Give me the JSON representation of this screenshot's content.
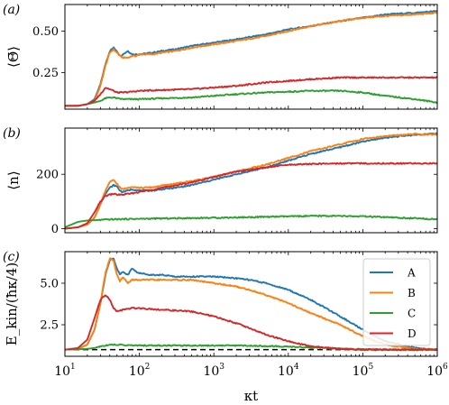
{
  "chart_data": [
    {
      "type": "line",
      "panel_label": "(a)",
      "ylabel": "⟨Θ̄⟩",
      "xscale": "log",
      "xlim": [
        10,
        1000000
      ],
      "ylim": [
        0.03,
        0.66
      ],
      "yticks": [
        0.25,
        0.5
      ],
      "ytick_labels": [
        "0.25",
        "0.50"
      ],
      "series": [
        {
          "name": "A",
          "x": [
            10,
            15,
            20,
            25,
            30,
            35,
            40,
            45,
            50,
            55,
            60,
            70,
            80,
            90,
            100,
            150,
            200,
            300,
            500,
            700,
            1000,
            2000,
            5000,
            10000,
            20000,
            50000,
            100000,
            200000,
            500000,
            1000000
          ],
          "y": [
            0.05,
            0.05,
            0.06,
            0.09,
            0.18,
            0.3,
            0.38,
            0.4,
            0.38,
            0.35,
            0.36,
            0.38,
            0.36,
            0.36,
            0.36,
            0.37,
            0.38,
            0.39,
            0.41,
            0.42,
            0.43,
            0.45,
            0.48,
            0.51,
            0.53,
            0.56,
            0.58,
            0.6,
            0.61,
            0.62
          ]
        },
        {
          "name": "B",
          "x": [
            10,
            15,
            20,
            25,
            30,
            35,
            40,
            45,
            50,
            55,
            60,
            70,
            80,
            90,
            100,
            150,
            200,
            300,
            500,
            700,
            1000,
            2000,
            5000,
            10000,
            20000,
            50000,
            100000,
            200000,
            500000,
            1000000
          ],
          "y": [
            0.05,
            0.05,
            0.06,
            0.08,
            0.17,
            0.29,
            0.37,
            0.39,
            0.37,
            0.35,
            0.34,
            0.34,
            0.35,
            0.35,
            0.36,
            0.36,
            0.37,
            0.38,
            0.4,
            0.41,
            0.42,
            0.44,
            0.47,
            0.5,
            0.53,
            0.56,
            0.58,
            0.59,
            0.6,
            0.61
          ]
        },
        {
          "name": "C",
          "x": [
            10,
            15,
            20,
            25,
            30,
            35,
            40,
            45,
            50,
            60,
            80,
            100,
            200,
            500,
            1000,
            2000,
            5000,
            10000,
            20000,
            30000,
            50000,
            100000,
            200000,
            500000,
            1000000
          ],
          "y": [
            0.05,
            0.05,
            0.06,
            0.07,
            0.08,
            0.095,
            0.1,
            0.1,
            0.095,
            0.09,
            0.09,
            0.09,
            0.095,
            0.1,
            0.11,
            0.12,
            0.13,
            0.135,
            0.14,
            0.14,
            0.14,
            0.13,
            0.11,
            0.09,
            0.07
          ]
        },
        {
          "name": "D",
          "x": [
            10,
            15,
            20,
            25,
            30,
            35,
            40,
            45,
            50,
            60,
            80,
            100,
            200,
            500,
            1000,
            2000,
            5000,
            10000,
            20000,
            50000,
            100000,
            200000,
            500000,
            1000000
          ],
          "y": [
            0.05,
            0.05,
            0.06,
            0.08,
            0.12,
            0.16,
            0.15,
            0.14,
            0.13,
            0.13,
            0.135,
            0.14,
            0.145,
            0.15,
            0.16,
            0.17,
            0.19,
            0.2,
            0.21,
            0.22,
            0.22,
            0.22,
            0.22,
            0.22
          ]
        }
      ]
    },
    {
      "type": "line",
      "panel_label": "(b)",
      "ylabel": "⟨n⟩",
      "xscale": "log",
      "xlim": [
        10,
        1000000
      ],
      "ylim": [
        -15,
        370
      ],
      "yticks": [
        0,
        200
      ],
      "ytick_labels": [
        "0",
        "200"
      ],
      "series": [
        {
          "name": "A",
          "x": [
            10,
            15,
            20,
            25,
            30,
            35,
            40,
            45,
            50,
            55,
            60,
            70,
            80,
            100,
            150,
            200,
            300,
            500,
            1000,
            2000,
            5000,
            10000,
            20000,
            50000,
            100000,
            200000,
            500000,
            1000000
          ],
          "y": [
            0,
            5,
            15,
            40,
            90,
            130,
            150,
            160,
            155,
            140,
            135,
            140,
            145,
            140,
            140,
            145,
            150,
            160,
            180,
            200,
            225,
            250,
            275,
            300,
            320,
            335,
            345,
            350
          ]
        },
        {
          "name": "B",
          "x": [
            10,
            15,
            20,
            25,
            30,
            35,
            40,
            45,
            50,
            55,
            60,
            70,
            80,
            100,
            150,
            200,
            300,
            500,
            1000,
            2000,
            5000,
            10000,
            20000,
            50000,
            100000,
            200000,
            500000,
            1000000
          ],
          "y": [
            0,
            5,
            15,
            40,
            90,
            140,
            170,
            180,
            165,
            150,
            145,
            150,
            155,
            150,
            152,
            158,
            165,
            175,
            190,
            210,
            235,
            260,
            285,
            310,
            330,
            340,
            348,
            345
          ]
        },
        {
          "name": "C",
          "x": [
            10,
            15,
            20,
            30,
            40,
            60,
            100,
            300,
            1000,
            3000,
            10000,
            30000,
            100000,
            300000,
            1000000
          ],
          "y": [
            5,
            25,
            30,
            32,
            34,
            35,
            36,
            38,
            40,
            42,
            45,
            47,
            45,
            40,
            35
          ]
        },
        {
          "name": "D",
          "x": [
            10,
            15,
            20,
            25,
            30,
            35,
            40,
            45,
            50,
            60,
            80,
            100,
            200,
            500,
            1000,
            2000,
            5000,
            10000,
            20000,
            50000,
            100000,
            200000,
            500000,
            1000000
          ],
          "y": [
            0,
            5,
            20,
            60,
            100,
            120,
            125,
            128,
            125,
            125,
            130,
            135,
            150,
            170,
            190,
            210,
            225,
            235,
            238,
            240,
            240,
            240,
            240,
            240
          ]
        }
      ]
    },
    {
      "type": "line",
      "panel_label": "(c)",
      "ylabel": "E_kin/(ħκ/4)",
      "xlabel": "κt",
      "xscale": "log",
      "xlim": [
        10,
        1000000
      ],
      "ylim": [
        0.6,
        6.9
      ],
      "yticks": [
        2.5,
        5.0
      ],
      "ytick_labels": [
        "2.5",
        "5.0"
      ],
      "xticks": [
        10,
        100,
        1000,
        10000,
        100000,
        1000000
      ],
      "xtick_labels": [
        {
          "base": "10",
          "exp": "1"
        },
        {
          "base": "10",
          "exp": "2"
        },
        {
          "base": "10",
          "exp": "3"
        },
        {
          "base": "10",
          "exp": "4"
        },
        {
          "base": "10",
          "exp": "5"
        },
        {
          "base": "10",
          "exp": "6"
        }
      ],
      "reference_line": {
        "y": 1.0,
        "style": "dashed",
        "color": "#000000"
      },
      "legend": {
        "placement": "top-right",
        "entries": [
          "A",
          "B",
          "C",
          "D"
        ]
      },
      "series": [
        {
          "name": "A",
          "x": [
            10,
            15,
            20,
            25,
            30,
            35,
            40,
            45,
            50,
            55,
            60,
            70,
            80,
            90,
            100,
            150,
            200,
            300,
            500,
            700,
            1000,
            2000,
            3000,
            5000,
            10000,
            20000,
            50000,
            100000,
            200000,
            500000,
            1000000
          ],
          "y": [
            1.0,
            1.05,
            1.3,
            2.2,
            3.8,
            5.5,
            6.4,
            6.5,
            5.9,
            5.5,
            5.7,
            5.5,
            5.9,
            5.7,
            5.6,
            5.5,
            5.5,
            5.4,
            5.4,
            5.4,
            5.4,
            5.3,
            5.2,
            5.0,
            4.6,
            4.0,
            3.0,
            2.2,
            1.5,
            1.1,
            1.0
          ]
        },
        {
          "name": "B",
          "x": [
            10,
            15,
            20,
            25,
            30,
            35,
            40,
            45,
            50,
            55,
            60,
            70,
            80,
            90,
            100,
            150,
            200,
            300,
            500,
            700,
            1000,
            2000,
            3000,
            5000,
            10000,
            20000,
            50000,
            100000,
            200000,
            500000,
            1000000
          ],
          "y": [
            1.0,
            1.05,
            1.3,
            2.2,
            3.8,
            5.6,
            6.5,
            6.4,
            5.5,
            5.1,
            5.4,
            5.0,
            5.2,
            5.2,
            5.2,
            5.2,
            5.2,
            5.2,
            5.2,
            5.1,
            5.0,
            4.8,
            4.6,
            4.3,
            3.8,
            3.2,
            2.5,
            1.8,
            1.3,
            1.05,
            1.0
          ]
        },
        {
          "name": "C",
          "x": [
            10,
            15,
            20,
            25,
            30,
            40,
            50,
            60,
            80,
            100,
            200,
            500,
            1000,
            2000,
            5000,
            10000,
            20000,
            50000,
            100000,
            200000,
            500000,
            1000000
          ],
          "y": [
            1.0,
            1.02,
            1.05,
            1.1,
            1.2,
            1.3,
            1.3,
            1.28,
            1.25,
            1.25,
            1.25,
            1.25,
            1.25,
            1.25,
            1.22,
            1.18,
            1.12,
            1.05,
            1.02,
            1.0,
            1.0,
            1.0
          ]
        },
        {
          "name": "D",
          "x": [
            10,
            15,
            20,
            25,
            30,
            35,
            40,
            45,
            50,
            60,
            80,
            100,
            200,
            500,
            1000,
            2000,
            3000,
            5000,
            10000,
            20000,
            50000,
            100000,
            200000,
            500000,
            1000000
          ],
          "y": [
            1.0,
            1.1,
            1.6,
            2.9,
            4.0,
            4.3,
            4.0,
            3.5,
            3.3,
            3.4,
            3.5,
            3.5,
            3.4,
            3.3,
            3.0,
            2.6,
            2.3,
            1.9,
            1.5,
            1.2,
            1.05,
            1.0,
            1.0,
            1.0,
            1.0
          ]
        }
      ]
    }
  ],
  "series_colors": {
    "A": "#1f77b4",
    "B": "#ff7f0e",
    "C": "#2ca02c",
    "D": "#d62728"
  }
}
